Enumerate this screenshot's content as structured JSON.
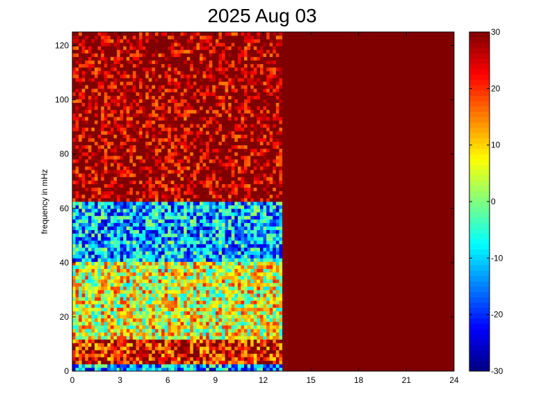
{
  "chart_data": {
    "type": "heatmap",
    "title": "2025 Aug 03",
    "xlabel": "",
    "ylabel": "frequency in mHz",
    "xlim": [
      0,
      24
    ],
    "ylim": [
      0,
      125
    ],
    "x_ticks": [
      0,
      3,
      6,
      9,
      12,
      15,
      18,
      21,
      24
    ],
    "y_ticks": [
      0,
      20,
      40,
      60,
      80,
      100,
      120
    ],
    "colorbar": {
      "colormap": "jet",
      "range": [
        -30,
        30
      ],
      "ticks": [
        -30,
        -20,
        -10,
        0,
        10,
        20,
        30
      ]
    },
    "data_end_hour": 13.2,
    "saturated_after_hour": 13.7,
    "saturated_value": 30,
    "bands": [
      {
        "f_from": 0,
        "f_to": 2,
        "approx_value": -12
      },
      {
        "f_from": 2,
        "f_to": 12,
        "approx_value": 24
      },
      {
        "f_from": 12,
        "f_to": 40,
        "approx_value": 6
      },
      {
        "f_from": 40,
        "f_to": 62,
        "approx_value": -12
      },
      {
        "f_from": 62,
        "f_to": 125,
        "approx_value": 30
      }
    ]
  }
}
